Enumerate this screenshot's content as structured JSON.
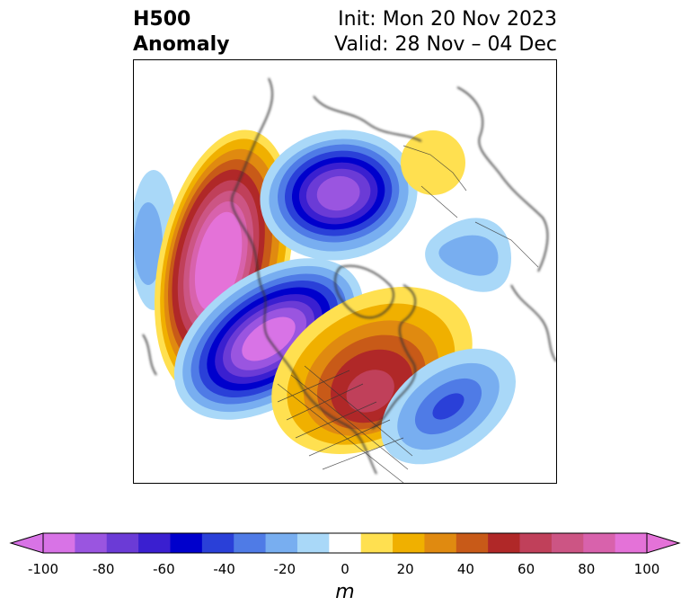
{
  "title": {
    "variable_line1": "H500",
    "variable_line2": "Anomaly",
    "init": "Init: Mon 20 Nov 2023",
    "valid": "Valid: 28 Nov – 04 Dec"
  },
  "map": {
    "projection": "north-polar-stereographic",
    "features": [
      {
        "name": "negative-center-pacific-west",
        "value_m": -40
      },
      {
        "name": "positive-center-northeast-pacific",
        "value_m": 100
      },
      {
        "name": "negative-center-arctic-canada",
        "value_m": -90
      },
      {
        "name": "positive-center-northern-europe",
        "value_m": 20
      },
      {
        "name": "negative-center-siberia",
        "value_m": -20
      },
      {
        "name": "negative-center-western-north-america",
        "value_m": -100
      },
      {
        "name": "positive-center-eastern-north-america",
        "value_m": 70
      },
      {
        "name": "negative-center-north-atlantic",
        "value_m": -50
      }
    ]
  },
  "colorbar": {
    "unit": "m",
    "ticks": [
      "-100",
      "-80",
      "-60",
      "-40",
      "-20",
      "0",
      "20",
      "40",
      "60",
      "80",
      "100"
    ],
    "levels": [
      -100,
      -90,
      -80,
      -70,
      -60,
      -50,
      -40,
      -30,
      -20,
      -10,
      10,
      20,
      30,
      40,
      50,
      60,
      70,
      80,
      90,
      100
    ],
    "colors": [
      "#d873e6",
      "#9a55e0",
      "#6b3bd6",
      "#3a1fd0",
      "#0000cc",
      "#2a40d8",
      "#4f7be6",
      "#78aef0",
      "#a9d8f8",
      "#ffffff",
      "#ffe050",
      "#f0b000",
      "#e08a10",
      "#c85a18",
      "#b02828",
      "#c0405a",
      "#cc5584",
      "#d862ac",
      "#e472d8"
    ],
    "extend": "both"
  }
}
